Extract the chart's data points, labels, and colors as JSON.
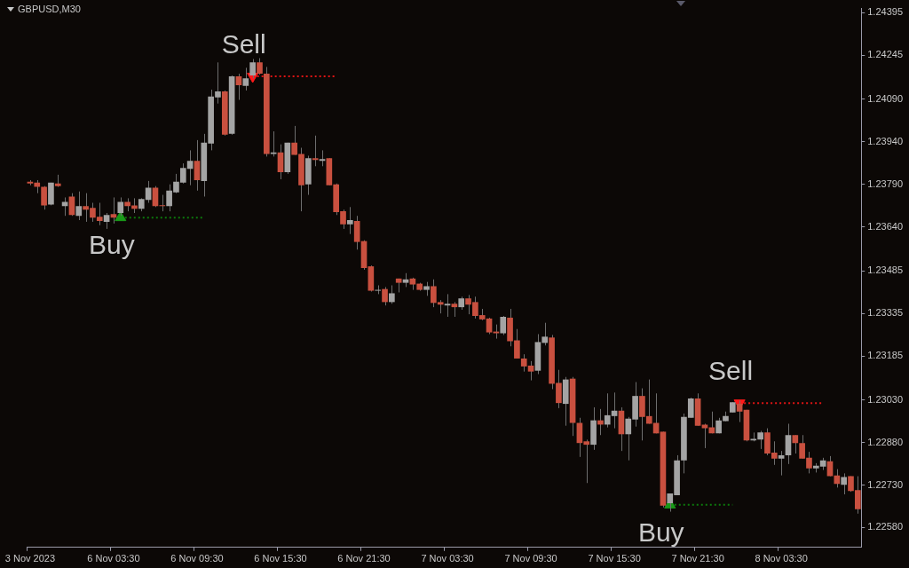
{
  "chart_data": {
    "type": "candlestick",
    "title": "GBPUSD,M30",
    "legend": false,
    "grid": false,
    "categories": [
      "3 Nov 2023",
      null,
      null,
      null,
      null,
      null,
      null,
      null,
      null,
      null,
      null,
      null,
      "6 Nov 03:30",
      null,
      null,
      null,
      null,
      null,
      null,
      null,
      null,
      null,
      null,
      null,
      "6 Nov 09:30",
      null,
      null,
      null,
      null,
      null,
      null,
      null,
      null,
      null,
      null,
      null,
      "6 Nov 15:30",
      null,
      null,
      null,
      null,
      null,
      null,
      null,
      null,
      null,
      null,
      null,
      "6 Nov 21:30",
      null,
      null,
      null,
      null,
      null,
      null,
      null,
      null,
      null,
      null,
      null,
      "7 Nov 03:30",
      null,
      null,
      null,
      null,
      null,
      null,
      null,
      null,
      null,
      null,
      null,
      "7 Nov 09:30",
      null,
      null,
      null,
      null,
      null,
      null,
      null,
      null,
      null,
      null,
      null,
      "7 Nov 15:30",
      null,
      null,
      null,
      null,
      null,
      null,
      null,
      null,
      null,
      null,
      null,
      "7 Nov 21:30",
      null,
      null,
      null,
      null,
      null,
      null,
      null,
      null,
      null,
      null,
      null,
      "8 Nov 03:30",
      null,
      null,
      null,
      null,
      null,
      null,
      null,
      null,
      null,
      null,
      null
    ],
    "ylim": [
      1.2251,
      1.2441
    ],
    "yticks": [
      {
        "value": 1.24395,
        "label": "1.24395"
      },
      {
        "value": 1.24245,
        "label": "1.24245"
      },
      {
        "value": 1.2409,
        "label": "1.24090"
      },
      {
        "value": 1.2394,
        "label": "1.23940"
      },
      {
        "value": 1.2379,
        "label": "1.23790"
      },
      {
        "value": 1.2364,
        "label": "1.23640"
      },
      {
        "value": 1.23485,
        "label": "1.23485"
      },
      {
        "value": 1.23335,
        "label": "1.23335"
      },
      {
        "value": 1.23185,
        "label": "1.23185"
      },
      {
        "value": 1.2303,
        "label": "1.23030"
      },
      {
        "value": 1.2288,
        "label": "1.22880"
      },
      {
        "value": 1.2273,
        "label": "1.22730"
      },
      {
        "value": 1.2258,
        "label": "1.22580"
      }
    ],
    "series": [
      {
        "type": "candlestick",
        "ohlc": [
          [
            1.23799,
            1.23805,
            1.23787,
            1.23793
          ],
          [
            1.23796,
            1.23805,
            1.23759,
            1.23781
          ],
          [
            1.23781,
            1.23784,
            1.23701,
            1.23716
          ],
          [
            1.23719,
            1.23796,
            1.23716,
            1.23796
          ],
          [
            1.23793,
            1.23824,
            1.23781,
            1.23784
          ],
          [
            1.23713,
            1.23744,
            1.23679,
            1.23728
          ],
          [
            1.23747,
            1.23759,
            1.23679,
            1.23682
          ],
          [
            1.23679,
            1.23765,
            1.23664,
            1.23713
          ],
          [
            1.23713,
            1.23759,
            1.23658,
            1.23701
          ],
          [
            1.23707,
            1.23725,
            1.23658,
            1.23673
          ],
          [
            1.23676,
            1.23725,
            1.23646,
            1.23661
          ],
          [
            1.23658,
            1.23689,
            1.23633,
            1.23682
          ],
          [
            1.23685,
            1.23744,
            1.23652,
            1.23673
          ],
          [
            1.23689,
            1.23744,
            1.23679,
            1.23728
          ],
          [
            1.23728,
            1.23741,
            1.23695,
            1.23713
          ],
          [
            1.23716,
            1.23741,
            1.23689,
            1.23704
          ],
          [
            1.23704,
            1.23741,
            1.23695,
            1.23738
          ],
          [
            1.23735,
            1.23802,
            1.23725,
            1.23778
          ],
          [
            1.23778,
            1.23784,
            1.2371,
            1.23713
          ],
          [
            1.23716,
            1.23753,
            1.23695,
            1.23713
          ],
          [
            1.23713,
            1.2379,
            1.23695,
            1.23768
          ],
          [
            1.23762,
            1.23827,
            1.23759,
            1.23799
          ],
          [
            1.23796,
            1.23864,
            1.23793,
            1.23848
          ],
          [
            1.23845,
            1.2391,
            1.23787,
            1.23873
          ],
          [
            1.23873,
            1.23946,
            1.23768,
            1.23805
          ],
          [
            1.23802,
            1.23968,
            1.23747,
            1.23937
          ],
          [
            1.23934,
            1.24124,
            1.2391,
            1.241
          ],
          [
            1.24097,
            1.2422,
            1.24075,
            1.24118
          ],
          [
            1.24118,
            1.24121,
            1.23962,
            1.23965
          ],
          [
            1.23968,
            1.24174,
            1.23965,
            1.24171
          ],
          [
            1.24171,
            1.2418,
            1.24088,
            1.2414
          ],
          [
            1.24137,
            1.24201,
            1.24121,
            1.24164
          ],
          [
            1.24174,
            1.24232,
            1.24164,
            1.2422
          ],
          [
            1.2422,
            1.24235,
            1.24177,
            1.2418
          ],
          [
            1.2418,
            1.24204,
            1.23888,
            1.23897
          ],
          [
            1.23897,
            1.23977,
            1.23888,
            1.23903
          ],
          [
            1.23903,
            1.23931,
            1.23808,
            1.23833
          ],
          [
            1.23833,
            1.23937,
            1.23827,
            1.23937
          ],
          [
            1.23937,
            1.23996,
            1.23894,
            1.23894
          ],
          [
            1.23897,
            1.23919,
            1.23695,
            1.23787
          ],
          [
            1.2379,
            1.23891,
            1.23753,
            1.23882
          ],
          [
            1.23882,
            1.23962,
            1.23854,
            1.23876
          ],
          [
            1.23873,
            1.2391,
            1.23854,
            1.23879
          ],
          [
            1.23882,
            1.23882,
            1.23787,
            1.23787
          ],
          [
            1.2379,
            1.23793,
            1.23682,
            1.23692
          ],
          [
            1.23695,
            1.23701,
            1.23633,
            1.23649
          ],
          [
            1.23649,
            1.2371,
            1.23615,
            1.23664
          ],
          [
            1.23661,
            1.23679,
            1.2356,
            1.23587
          ],
          [
            1.2359,
            1.23593,
            1.23489,
            1.23495
          ],
          [
            1.23501,
            1.23504,
            1.23412,
            1.23415
          ],
          [
            1.23415,
            1.23434,
            1.23403,
            1.23418
          ],
          [
            1.23421,
            1.23428,
            1.23363,
            1.23375
          ],
          [
            1.23375,
            1.23434,
            1.23369,
            1.23406
          ],
          [
            1.23458,
            1.23458,
            1.23409,
            1.23443
          ],
          [
            1.23443,
            1.23477,
            1.23428,
            1.23455
          ],
          [
            1.23458,
            1.23461,
            1.23418,
            1.23437
          ],
          [
            1.2344,
            1.23443,
            1.23415,
            1.23418
          ],
          [
            1.23418,
            1.23446,
            1.23397,
            1.23431
          ],
          [
            1.23431,
            1.23455,
            1.23357,
            1.23372
          ],
          [
            1.23375,
            1.23382,
            1.23335,
            1.23366
          ],
          [
            1.23363,
            1.23403,
            1.23323,
            1.23369
          ],
          [
            1.23369,
            1.23375,
            1.23323,
            1.23357
          ],
          [
            1.23357,
            1.23394,
            1.23348,
            1.23388
          ],
          [
            1.23388,
            1.234,
            1.23332,
            1.23366
          ],
          [
            1.23375,
            1.23394,
            1.23317,
            1.23326
          ],
          [
            1.23329,
            1.23351,
            1.23311,
            1.23314
          ],
          [
            1.23317,
            1.2332,
            1.23262,
            1.23268
          ],
          [
            1.23271,
            1.23296,
            1.23246,
            1.23265
          ],
          [
            1.23265,
            1.23326,
            1.23259,
            1.23323
          ],
          [
            1.2332,
            1.23351,
            1.23219,
            1.23237
          ],
          [
            1.2324,
            1.2328,
            1.23176,
            1.23176
          ],
          [
            1.23176,
            1.23191,
            1.2313,
            1.23148
          ],
          [
            1.23151,
            1.23167,
            1.23099,
            1.2313
          ],
          [
            1.23133,
            1.23262,
            1.23121,
            1.23234
          ],
          [
            1.23231,
            1.23302,
            1.23222,
            1.23253
          ],
          [
            1.2325,
            1.23259,
            1.23068,
            1.23087
          ],
          [
            1.2309,
            1.23136,
            1.23001,
            1.23019
          ],
          [
            1.23016,
            1.23111,
            1.22939,
            1.23102
          ],
          [
            1.23105,
            1.23111,
            1.22903,
            1.22949
          ],
          [
            1.22949,
            1.22967,
            1.22829,
            1.22878
          ],
          [
            1.22884,
            1.2289,
            1.22737,
            1.22872
          ],
          [
            1.22872,
            1.23004,
            1.22854,
            1.22958
          ],
          [
            1.22958,
            1.22998,
            1.22906,
            1.22943
          ],
          [
            1.22943,
            1.23053,
            1.22933,
            1.22976
          ],
          [
            1.22973,
            1.23056,
            1.2293,
            1.22992
          ],
          [
            1.22992,
            1.23004,
            1.2285,
            1.22909
          ],
          [
            1.22909,
            1.2297,
            1.22817,
            1.22964
          ],
          [
            1.22961,
            1.23093,
            1.22936,
            1.23044
          ],
          [
            1.23044,
            1.23071,
            1.22887,
            1.2297
          ],
          [
            1.22973,
            1.23102,
            1.22946,
            1.22946
          ],
          [
            1.22949,
            1.23053,
            1.22912,
            1.22912
          ],
          [
            1.22918,
            1.22918,
            1.22651,
            1.22657
          ],
          [
            1.22666,
            1.227,
            1.22636,
            1.227
          ],
          [
            1.22694,
            1.22835,
            1.22694,
            1.22817
          ],
          [
            1.22817,
            1.22982,
            1.22771,
            1.2297
          ],
          [
            1.22967,
            1.23038,
            1.22967,
            1.23035
          ],
          [
            1.23035,
            1.23053,
            1.22939,
            1.22939
          ],
          [
            1.22943,
            1.22946,
            1.2286,
            1.2293
          ],
          [
            1.22933,
            1.22989,
            1.22912,
            1.22912
          ],
          [
            1.22912,
            1.22967,
            1.22912,
            1.22958
          ],
          [
            1.22955,
            1.22989,
            1.22955,
            1.22973
          ],
          [
            1.22986,
            1.23022,
            1.22986,
            1.23022
          ],
          [
            1.23016,
            1.23028,
            1.22952,
            1.22989
          ],
          [
            1.22995,
            1.22995,
            1.22884,
            1.22887
          ],
          [
            1.22887,
            1.22915,
            1.22884,
            1.22893
          ],
          [
            1.2289,
            1.22921,
            1.22857,
            1.22915
          ],
          [
            1.22915,
            1.2293,
            1.22835,
            1.22841
          ],
          [
            1.22844,
            1.22884,
            1.22801,
            1.22823
          ],
          [
            1.22823,
            1.2285,
            1.22764,
            1.22835
          ],
          [
            1.22835,
            1.22946,
            1.22804,
            1.22906
          ],
          [
            1.22906,
            1.22906,
            1.22841,
            1.22878
          ],
          [
            1.22878,
            1.22906,
            1.22823,
            1.22823
          ],
          [
            1.22826,
            1.22847,
            1.22771,
            1.22789
          ],
          [
            1.22789,
            1.22807,
            1.22774,
            1.22798
          ],
          [
            1.22795,
            1.22826,
            1.22783,
            1.22817
          ],
          [
            1.22814,
            1.22832,
            1.22761,
            1.22761
          ],
          [
            1.22764,
            1.22786,
            1.22721,
            1.22734
          ],
          [
            1.22731,
            1.22771,
            1.22697,
            1.22758
          ],
          [
            1.22761,
            1.22761,
            1.22706,
            1.22709
          ],
          [
            1.22712,
            1.22761,
            1.22629,
            1.22645
          ]
        ],
        "colors": [
          "#c9503f",
          "#c9503f",
          "#c9503f",
          "#a4a4a4",
          "#c9503f",
          "#a4a4a4",
          "#c9503f",
          "#a4a4a4",
          "#c9503f",
          "#c9503f",
          "#c9503f",
          "#a4a4a4",
          "#c9503f",
          "#a4a4a4",
          "#c9503f",
          "#c9503f",
          "#a4a4a4",
          "#a4a4a4",
          "#c9503f",
          "#c9503f",
          "#a4a4a4",
          "#a4a4a4",
          "#a4a4a4",
          "#a4a4a4",
          "#c9503f",
          "#a4a4a4",
          "#a4a4a4",
          "#a4a4a4",
          "#c9503f",
          "#a4a4a4",
          "#c9503f",
          "#a4a4a4",
          "#a4a4a4",
          "#c9503f",
          "#c9503f",
          "#a4a4a4",
          "#c9503f",
          "#a4a4a4",
          "#c9503f",
          "#c9503f",
          "#a4a4a4",
          "#c9503f",
          "#a4a4a4",
          "#c9503f",
          "#c9503f",
          "#c9503f",
          "#a4a4a4",
          "#c9503f",
          "#c9503f",
          "#c9503f",
          "#a4a4a4",
          "#c9503f",
          "#a4a4a4",
          "#c9503f",
          "#a4a4a4",
          "#c9503f",
          "#c9503f",
          "#a4a4a4",
          "#c9503f",
          "#c9503f",
          "#a4a4a4",
          "#c9503f",
          "#a4a4a4",
          "#c9503f",
          "#c9503f",
          "#c9503f",
          "#c9503f",
          "#c9503f",
          "#a4a4a4",
          "#c9503f",
          "#c9503f",
          "#c9503f",
          "#c9503f",
          "#a4a4a4",
          "#a4a4a4",
          "#c9503f",
          "#c9503f",
          "#a4a4a4",
          "#c9503f",
          "#c9503f",
          "#c9503f",
          "#a4a4a4",
          "#c9503f",
          "#a4a4a4",
          "#a4a4a4",
          "#c9503f",
          "#a4a4a4",
          "#a4a4a4",
          "#c9503f",
          "#c9503f",
          "#c9503f",
          "#c9503f",
          "#a4a4a4",
          "#a4a4a4",
          "#a4a4a4",
          "#a4a4a4",
          "#c9503f",
          "#c9503f",
          "#c9503f",
          "#a4a4a4",
          "#a4a4a4",
          "#a4a4a4",
          "#c9503f",
          "#c9503f",
          "#a4a4a4",
          "#a4a4a4",
          "#c9503f",
          "#c9503f",
          "#a4a4a4",
          "#a4a4a4",
          "#c9503f",
          "#c9503f",
          "#c9503f",
          "#a4a4a4",
          "#a4a4a4",
          "#c9503f",
          "#c9503f",
          "#a4a4a4",
          "#c9503f",
          "#c9503f"
        ]
      },
      {
        "type": "line",
        "line_style": "dotted",
        "color": "#0c7a0c",
        "values": [
          null,
          null,
          null,
          null,
          null,
          null,
          null,
          null,
          null,
          null,
          null,
          null,
          null,
          1.23673,
          1.23673,
          1.23673,
          1.23673,
          1.23673,
          1.23673,
          1.23673,
          1.23673,
          1.23673,
          1.23673,
          1.23673,
          1.23673,
          1.23673,
          null,
          null,
          null,
          null,
          null,
          null,
          null,
          null,
          null,
          null,
          null,
          null,
          null,
          null,
          null,
          null,
          null,
          null,
          null,
          null,
          null,
          null,
          null,
          null,
          null,
          null,
          null,
          null,
          null,
          null,
          null,
          null,
          null,
          null,
          null,
          null,
          null,
          null,
          null,
          null,
          null,
          null,
          null,
          null,
          null,
          null,
          null,
          null,
          null,
          null,
          null,
          null,
          null,
          null,
          null,
          null,
          null,
          null,
          null,
          null,
          null,
          null,
          null,
          null,
          null,
          null,
          1.2266,
          1.2266,
          1.2266,
          1.2266,
          1.2266,
          1.2266,
          1.2266,
          1.2266,
          1.2266,
          1.2266,
          null,
          null,
          null,
          null,
          null,
          null,
          null,
          null,
          null,
          null,
          null,
          null,
          null,
          null,
          null,
          null,
          null,
          null
        ]
      },
      {
        "type": "line",
        "line_style": "dotted",
        "color": "#e01414",
        "values": [
          null,
          null,
          null,
          null,
          null,
          null,
          null,
          null,
          null,
          null,
          null,
          null,
          null,
          null,
          null,
          null,
          null,
          null,
          null,
          null,
          null,
          null,
          null,
          null,
          null,
          null,
          null,
          null,
          null,
          null,
          null,
          null,
          1.24171,
          1.24171,
          1.24171,
          1.24171,
          1.24171,
          1.24171,
          1.24171,
          1.24171,
          1.24171,
          1.24171,
          1.24171,
          1.24171,
          1.24171,
          null,
          null,
          null,
          null,
          null,
          null,
          null,
          null,
          null,
          null,
          null,
          null,
          null,
          null,
          null,
          null,
          null,
          null,
          null,
          null,
          null,
          null,
          null,
          null,
          null,
          null,
          null,
          null,
          null,
          null,
          null,
          null,
          null,
          null,
          null,
          null,
          null,
          null,
          null,
          null,
          null,
          null,
          null,
          null,
          null,
          null,
          null,
          null,
          null,
          null,
          null,
          null,
          null,
          null,
          null,
          null,
          null,
          1.23019,
          1.23019,
          1.23019,
          1.23019,
          1.23019,
          1.23019,
          1.23019,
          1.23019,
          1.23019,
          1.23019,
          1.23019,
          1.23019,
          1.23019,
          null,
          null,
          null,
          null,
          null
        ]
      },
      {
        "name": "Buy",
        "type": "scatter",
        "marker": "triangle",
        "color": "#1a9a1a",
        "values": [
          null,
          null,
          null,
          null,
          null,
          null,
          null,
          null,
          null,
          null,
          null,
          null,
          null,
          1.23673,
          null,
          null,
          null,
          null,
          null,
          null,
          null,
          null,
          null,
          null,
          null,
          null,
          null,
          null,
          null,
          null,
          null,
          null,
          null,
          null,
          null,
          null,
          null,
          null,
          null,
          null,
          null,
          null,
          null,
          null,
          null,
          null,
          null,
          null,
          null,
          null,
          null,
          null,
          null,
          null,
          null,
          null,
          null,
          null,
          null,
          null,
          null,
          null,
          null,
          null,
          null,
          null,
          null,
          null,
          null,
          null,
          null,
          null,
          null,
          null,
          null,
          null,
          null,
          null,
          null,
          null,
          null,
          null,
          null,
          null,
          null,
          null,
          null,
          null,
          null,
          null,
          null,
          null,
          1.2266,
          null,
          null,
          null,
          null,
          null,
          null,
          null,
          null,
          null,
          null,
          null,
          null,
          null,
          null,
          null,
          null,
          null,
          null,
          null,
          null,
          null,
          null,
          null,
          null,
          null,
          null,
          null
        ]
      },
      {
        "name": "Sell",
        "type": "scatter",
        "marker": "triangle",
        "color": "#ff1a1a",
        "values": [
          null,
          null,
          null,
          null,
          null,
          null,
          null,
          null,
          null,
          null,
          null,
          null,
          null,
          null,
          null,
          null,
          null,
          null,
          null,
          null,
          null,
          null,
          null,
          null,
          null,
          null,
          null,
          null,
          null,
          null,
          null,
          null,
          1.24171,
          null,
          null,
          null,
          null,
          null,
          null,
          null,
          null,
          null,
          null,
          null,
          null,
          null,
          null,
          null,
          null,
          null,
          null,
          null,
          null,
          null,
          null,
          null,
          null,
          null,
          null,
          null,
          null,
          null,
          null,
          null,
          null,
          null,
          null,
          null,
          null,
          null,
          null,
          null,
          null,
          null,
          null,
          null,
          null,
          null,
          null,
          null,
          null,
          null,
          null,
          null,
          null,
          null,
          null,
          null,
          null,
          null,
          null,
          null,
          null,
          null,
          null,
          null,
          null,
          null,
          null,
          null,
          null,
          null,
          1.23019,
          null,
          null,
          null,
          null,
          null,
          null,
          null,
          null,
          null,
          null,
          null,
          null,
          null,
          null,
          null,
          null,
          null
        ]
      }
    ]
  }
}
